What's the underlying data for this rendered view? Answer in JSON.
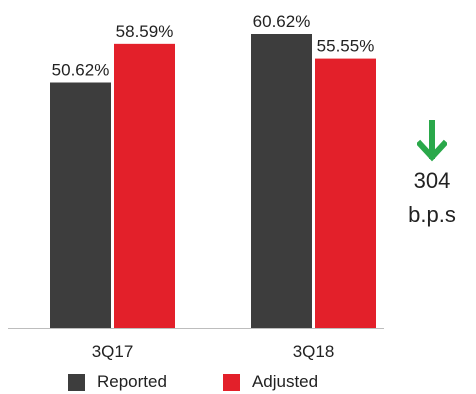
{
  "chart_data": {
    "type": "bar",
    "categories": [
      "3Q17",
      "3Q18"
    ],
    "series": [
      {
        "name": "Reported",
        "color": "#3d3d3d",
        "values": [
          50.62,
          60.62
        ],
        "labels": [
          "50.62%",
          "60.62%"
        ]
      },
      {
        "name": "Adjusted",
        "color": "#e3202a",
        "values": [
          58.59,
          55.55
        ],
        "labels": [
          "58.59%",
          "55.55%"
        ]
      }
    ],
    "ylim": [
      0,
      60.62
    ],
    "legend": "bottom",
    "grid": false
  },
  "callout": {
    "arrow_icon": "arrow-down-icon",
    "arrow_color": "#2aa84a",
    "value": "304",
    "unit": "b.p.s"
  }
}
